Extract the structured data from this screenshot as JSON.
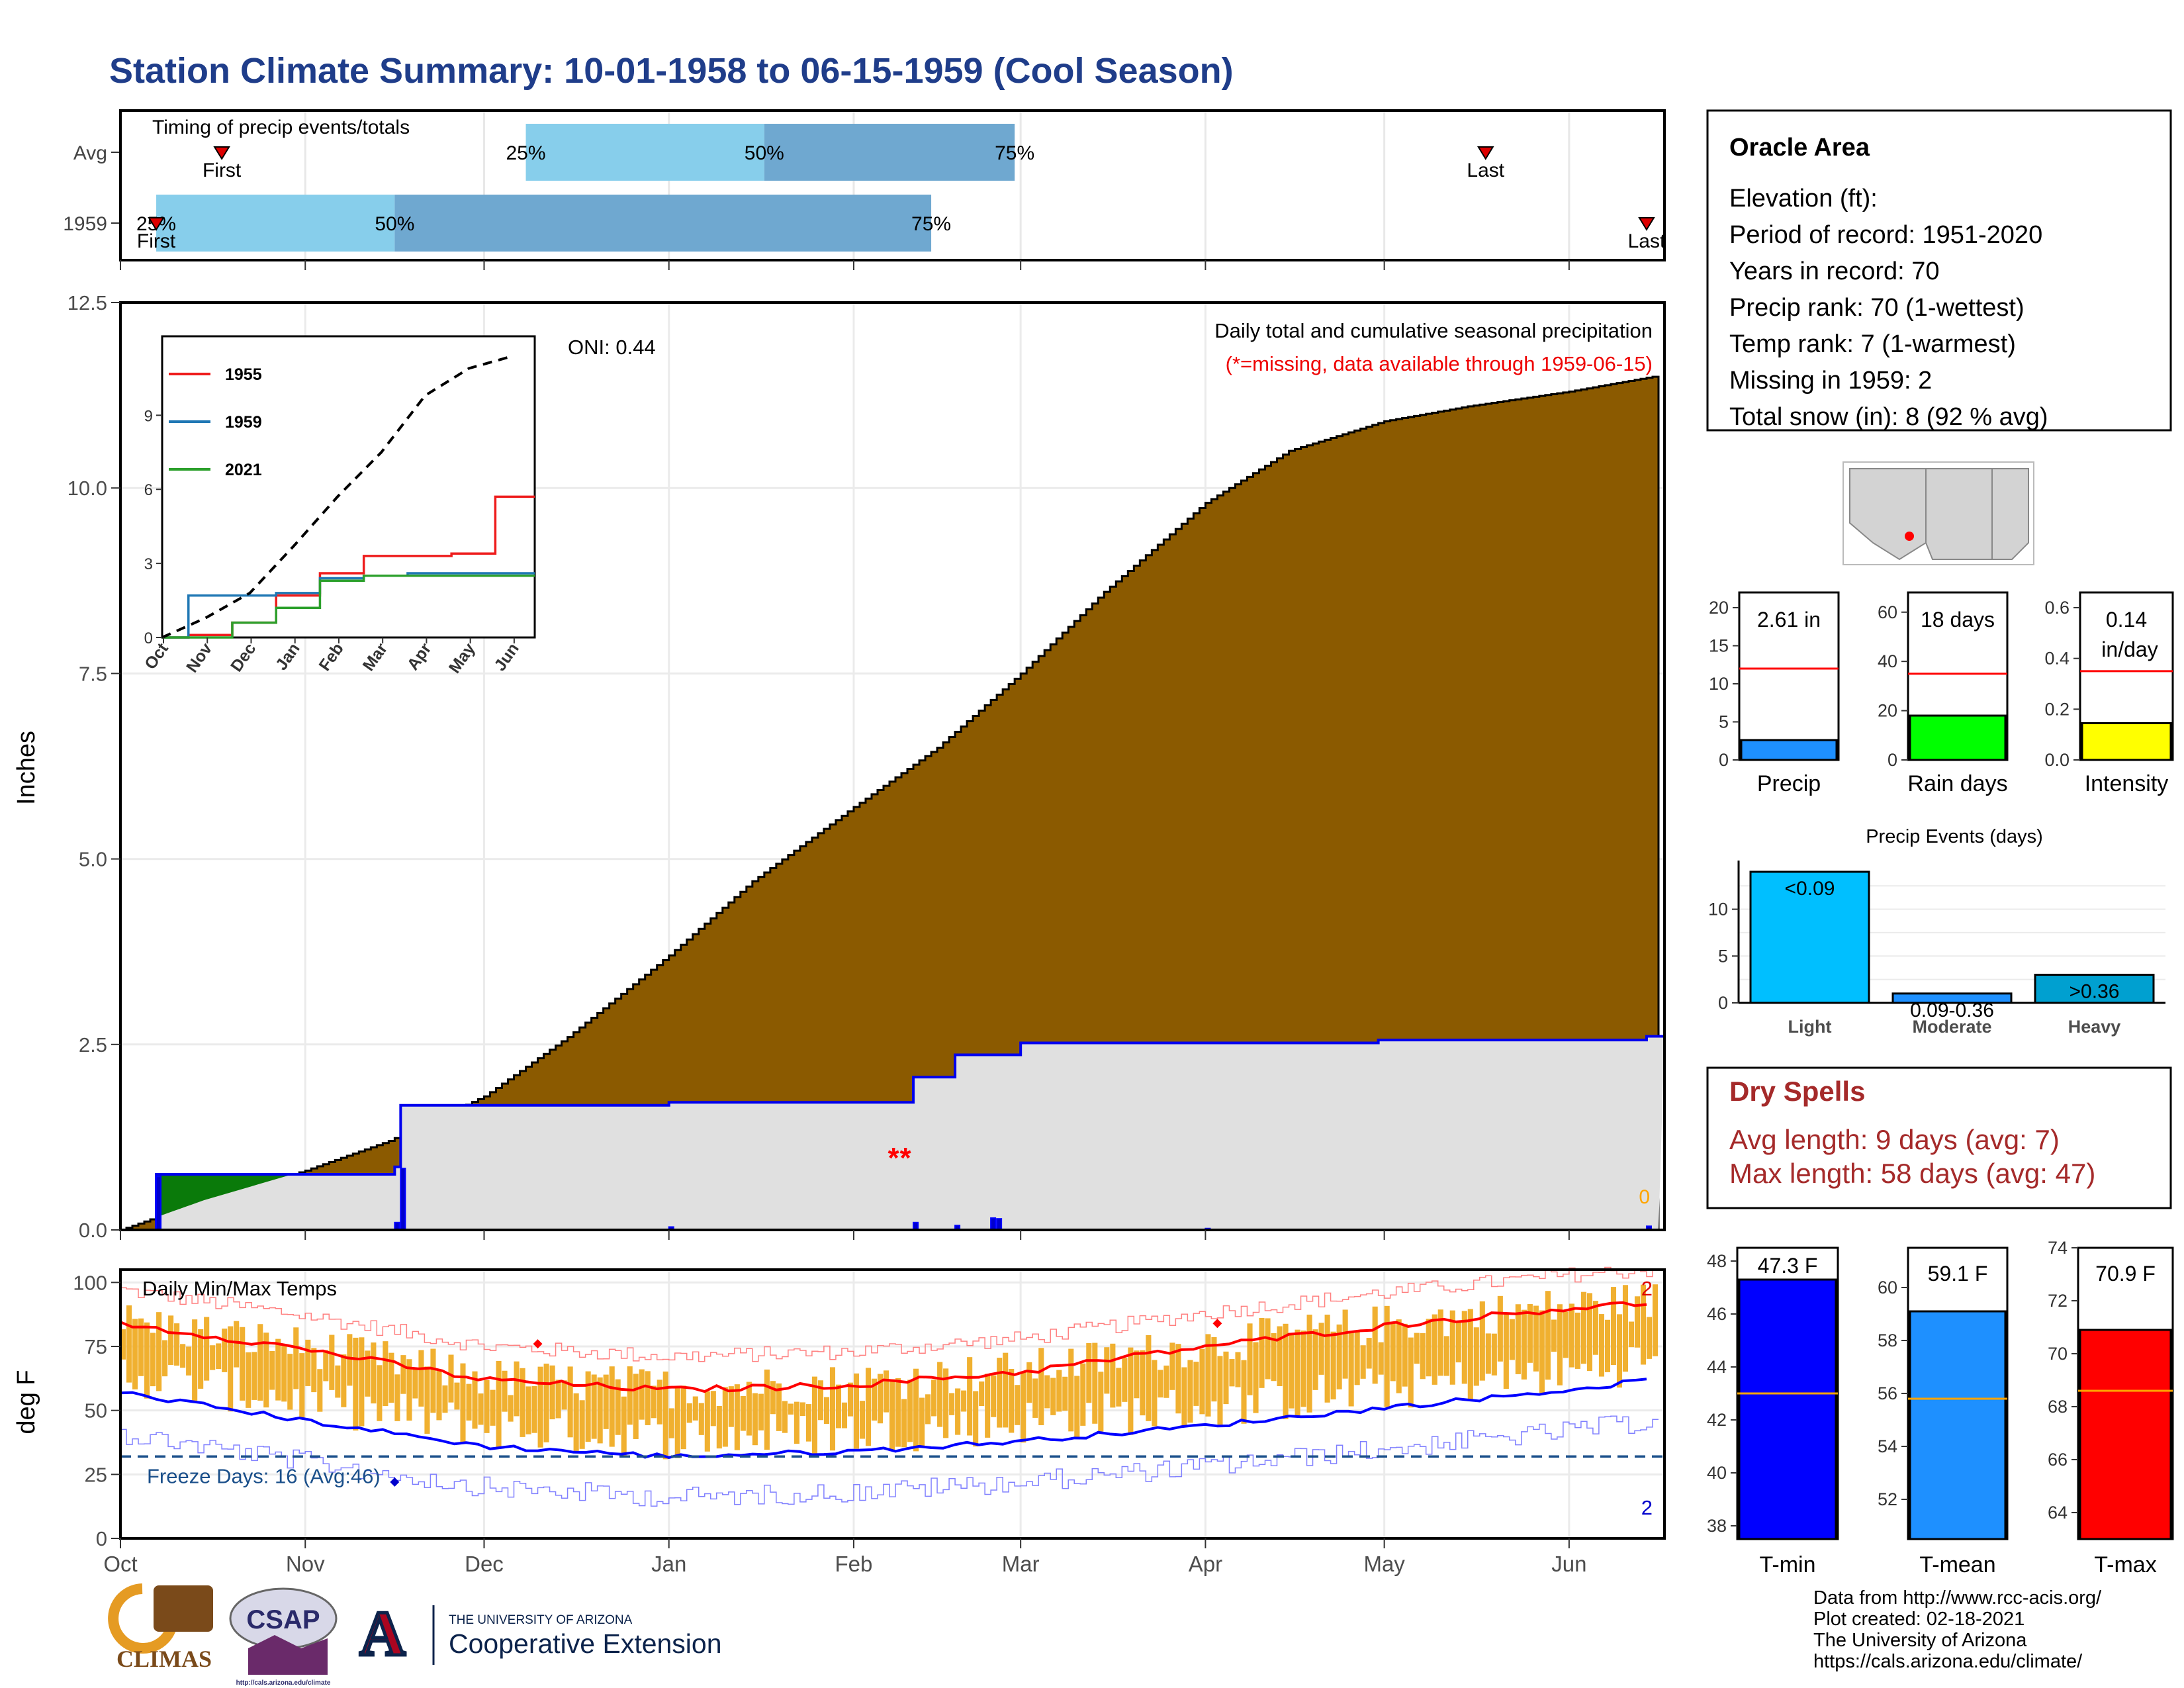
{
  "title": "Station Climate Summary: 10-01-1958 to 06-15-1959 (Cool Season)",
  "colors": {
    "title": "#1f3d8a",
    "precip_fill": "#8b5a00",
    "green_fill": "#0a7a0a",
    "normal_fill": "#e0e0e0",
    "normal_line": "#0000ee",
    "bar_light": "#87ceeb",
    "bar_dark": "#6fa8d0",
    "temp_bars": "#f0b030",
    "tmax_norm": "#ff0000",
    "tmin_norm": "#0000ff",
    "dry_spells": "#a52a2a",
    "freeze": "#1a4f8a",
    "missing": "#ff0000"
  },
  "timing": {
    "title": "Timing of precip events/totals",
    "row_labels": [
      "Avg",
      "1959"
    ],
    "avg": {
      "first_label": "First",
      "last_label": "Last",
      "p25": "25%",
      "p50": "50%",
      "p75": "75%",
      "first_date": "10-18",
      "last_date": "05-18",
      "p25_date": "12-08",
      "p50_date": "01-17",
      "p75_date": "02-28"
    },
    "y1959": {
      "first_label": "First",
      "last_label": "Last",
      "p25": "25%",
      "p50": "50%",
      "p75": "75%",
      "first_date": "10-07",
      "last_date": "06-14",
      "p25_date": "10-07",
      "p50_date": "11-16",
      "p75_date": "02-14"
    }
  },
  "info_box": {
    "area": "Oracle Area",
    "lines": [
      "Elevation (ft):",
      "Period of record: 1951-2020",
      "Years in record: 70",
      "Precip rank: 70 (1-wettest)",
      "Temp rank: 7 (1-warmest)",
      "Missing in 1959: 2",
      "Total snow (in): 8 (92 % avg)"
    ]
  },
  "main_chart": {
    "ylabel": "Inches",
    "annotation_title": "Daily total and cumulative seasonal precipitation",
    "annotation_missing": "(*=missing, data available through 1959-06-15)",
    "oni": "ONI: 0.44",
    "zero_label": "0"
  },
  "inset": {
    "legend": [
      "1955",
      "1959",
      "2021"
    ],
    "legend_colors": [
      "#ee1c1c",
      "#1f77b4",
      "#2ca02c"
    ],
    "months": [
      "Oct",
      "Nov",
      "Dec",
      "Jan",
      "Feb",
      "Mar",
      "Apr",
      "May",
      "Jun"
    ],
    "yticks": [
      "0",
      "3",
      "6",
      "9"
    ]
  },
  "temp_chart": {
    "ylabel": "deg F",
    "title": "Daily Min/Max Temps",
    "freeze_label": "Freeze Days: 16 (Avg:46)",
    "max_count": "2",
    "min_count": "2"
  },
  "x_months": [
    "Oct",
    "Nov",
    "Dec",
    "Jan",
    "Feb",
    "Mar",
    "Apr",
    "May",
    "Jun"
  ],
  "mini_bars": [
    {
      "label": "Precip",
      "value_text": "2.61 in",
      "value": 2.61,
      "avg": 12.0,
      "ymax": 22,
      "ticks": [
        "0",
        "5",
        "10",
        "15",
        "20"
      ],
      "color": "#1e90ff"
    },
    {
      "label": "Rain days",
      "value_text": "18 days",
      "value": 18,
      "avg": 35,
      "ymax": 68,
      "ticks": [
        "0",
        "20",
        "40",
        "60"
      ],
      "color": "#00ff00"
    },
    {
      "label": "Intensity",
      "value_text": "0.14",
      "value_text2": "in/day",
      "value": 0.145,
      "avg": 0.35,
      "ymax": 0.66,
      "ticks": [
        "0.0",
        "0.2",
        "0.4",
        "0.6"
      ],
      "color": "#ffff00"
    }
  ],
  "precip_events": {
    "title": "Precip Events (days)",
    "categories": [
      "Light",
      "Moderate",
      "Heavy"
    ],
    "bar_labels": [
      "<0.09",
      "0.09-0.36",
      ">0.36"
    ],
    "values": [
      14,
      1,
      3
    ],
    "colors": [
      "#00bfff",
      "#1e90ff",
      "#00a0d0"
    ],
    "ticks": [
      "0",
      "5",
      "10"
    ]
  },
  "dry_spells": {
    "title": "Dry Spells",
    "avg_line": "Avg length: 9 days (avg: 7)",
    "max_line": "Max length: 58 days (avg: 47)"
  },
  "temp_bars": [
    {
      "label": "T-min",
      "value_text": "47.3 F",
      "value": 47.3,
      "avg": 43.0,
      "ylim": [
        37.5,
        48.5
      ],
      "ticks": [
        "38",
        "40",
        "42",
        "44",
        "46",
        "48"
      ],
      "color": "#0000ff"
    },
    {
      "label": "T-mean",
      "value_text": "59.1 F",
      "value": 59.1,
      "avg": 55.8,
      "ylim": [
        50.5,
        61.5
      ],
      "ticks": [
        "52",
        "54",
        "56",
        "58",
        "60"
      ],
      "color": "#1e90ff"
    },
    {
      "label": "T-max",
      "value_text": "70.9 F",
      "value": 70.9,
      "avg": 68.6,
      "ylim": [
        63,
        74
      ],
      "ticks": [
        "64",
        "66",
        "68",
        "70",
        "72",
        "74"
      ],
      "color": "#ff0000"
    }
  ],
  "footer": {
    "lines": [
      "Data from http://www.rcc-acis.org/",
      "Plot created: 02-18-2021",
      "The University of Arizona",
      "https://cals.arizona.edu/climate/"
    ],
    "logos": {
      "climas": "CLIMAS",
      "csap": "CSAP",
      "csap_url": "http://cals.arizona.edu/climate",
      "ua_small": "THE UNIVERSITY OF ARIZONA",
      "ua_big": "Cooperative Extension"
    }
  },
  "chart_data": [
    {
      "type": "area",
      "title": "Daily total and cumulative seasonal precipitation",
      "ylabel": "Inches",
      "ylim": [
        0,
        12.5
      ],
      "x_range": [
        "1958-10-01",
        "1959-06-15"
      ],
      "series": [
        {
          "name": "Cumulative average",
          "x": [
            "10-01",
            "10-15",
            "11-01",
            "11-15",
            "12-01",
            "12-15",
            "01-01",
            "01-15",
            "02-01",
            "02-15",
            "03-01",
            "03-15",
            "04-01",
            "04-15",
            "05-01",
            "05-15",
            "06-01",
            "06-15"
          ],
          "values": [
            0.0,
            0.4,
            0.8,
            1.2,
            1.8,
            2.6,
            3.7,
            4.7,
            5.7,
            6.5,
            7.5,
            8.6,
            9.8,
            10.5,
            10.9,
            11.1,
            11.3,
            11.5
          ]
        },
        {
          "name": "1959",
          "x": [
            "10-01",
            "10-07",
            "11-16",
            "11-17",
            "01-01",
            "02-11",
            "02-18",
            "03-01",
            "04-30",
            "06-14",
            "06-15"
          ],
          "values": [
            0.0,
            0.75,
            0.85,
            1.68,
            1.72,
            2.06,
            2.36,
            2.52,
            2.56,
            2.61,
            2.61
          ]
        }
      ]
    },
    {
      "type": "line",
      "title": "Daily Min/Max Temps",
      "ylabel": "deg F",
      "ylim": [
        0,
        105
      ],
      "x": [
        "10-01",
        "11-01",
        "12-01",
        "01-01",
        "02-01",
        "03-01",
        "04-01",
        "05-01",
        "06-01",
        "06-15"
      ],
      "series": [
        {
          "name": "Normal max",
          "values": [
            84,
            74,
            62,
            58,
            60,
            65,
            75,
            83,
            90,
            92
          ]
        },
        {
          "name": "Normal min",
          "values": [
            57,
            46,
            36,
            32,
            34,
            38,
            44,
            51,
            58,
            62
          ]
        }
      ],
      "freeze_threshold": 32
    },
    {
      "type": "line",
      "title": "Inset cumulative precipitation",
      "x": [
        "Oct",
        "Nov",
        "Dec",
        "Jan",
        "Feb",
        "Mar",
        "Apr",
        "May",
        "Jun"
      ],
      "series": [
        {
          "name": "1955",
          "values": [
            0,
            0.1,
            0.6,
            1.7,
            2.6,
            3.3,
            3.3,
            3.4,
            5.7
          ]
        },
        {
          "name": "1959",
          "values": [
            0,
            1.7,
            1.7,
            1.8,
            2.4,
            2.5,
            2.6,
            2.6,
            2.6
          ]
        },
        {
          "name": "2021",
          "values": [
            0,
            0.0,
            0.6,
            1.2,
            2.3,
            2.5,
            2.5,
            2.5,
            2.5
          ]
        },
        {
          "name": "Average",
          "values": [
            0,
            0.8,
            1.8,
            3.7,
            5.7,
            7.5,
            9.8,
            10.9,
            11.4
          ]
        }
      ]
    }
  ]
}
